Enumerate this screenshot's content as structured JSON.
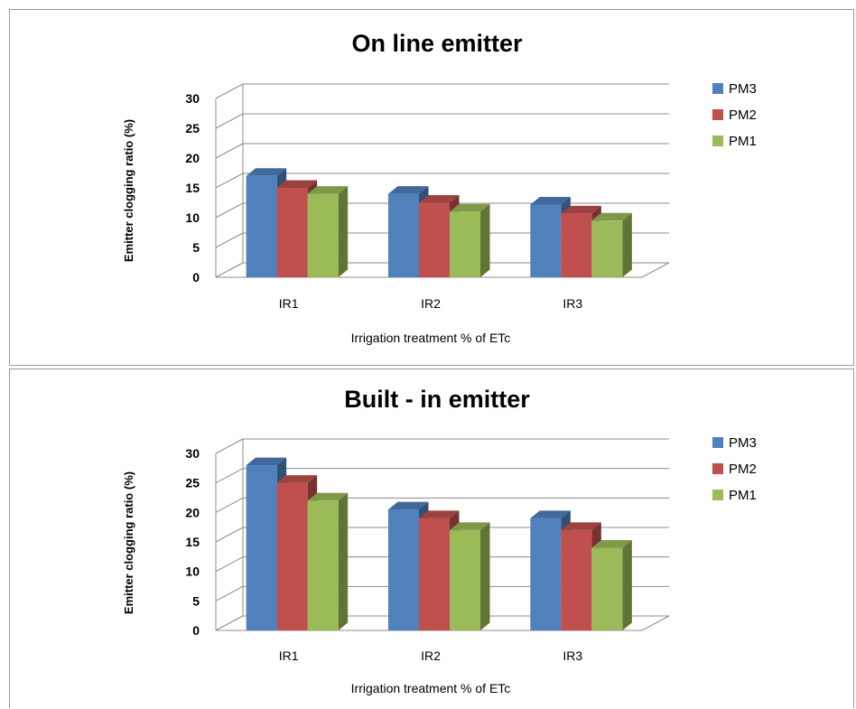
{
  "chart_data": [
    {
      "type": "bar",
      "title": "On line emitter",
      "xlabel": "Irrigation treatment % of ETc",
      "ylabel": "Emitter clogging ratio (%)",
      "ylim": [
        0,
        30
      ],
      "yticks": [
        0,
        5,
        10,
        15,
        20,
        25,
        30
      ],
      "grid": true,
      "legend": "right",
      "categories": [
        "IR1",
        "IR2",
        "IR3"
      ],
      "series": [
        {
          "name": "PM3",
          "color": "#4F81BD",
          "values": [
            17,
            14,
            12.2
          ]
        },
        {
          "name": "PM2",
          "color": "#C0504D",
          "values": [
            15,
            12.5,
            10.7
          ]
        },
        {
          "name": "PM1",
          "color": "#9BBB59",
          "values": [
            14,
            11,
            9.5
          ]
        }
      ]
    },
    {
      "type": "bar",
      "title": "Built - in emitter",
      "xlabel": "Irrigation treatment % of ETc",
      "ylabel": "Emitter clogging ratio (%)",
      "ylim": [
        0,
        30
      ],
      "yticks": [
        0,
        5,
        10,
        15,
        20,
        25,
        30
      ],
      "grid": true,
      "legend": "right",
      "categories": [
        "IR1",
        "IR2",
        "IR3"
      ],
      "series": [
        {
          "name": "PM3",
          "color": "#4F81BD",
          "values": [
            28,
            20.5,
            19
          ]
        },
        {
          "name": "PM2",
          "color": "#C0504D",
          "values": [
            25,
            19,
            17
          ]
        },
        {
          "name": "PM1",
          "color": "#9BBB59",
          "values": [
            22,
            17,
            14
          ]
        }
      ]
    }
  ]
}
